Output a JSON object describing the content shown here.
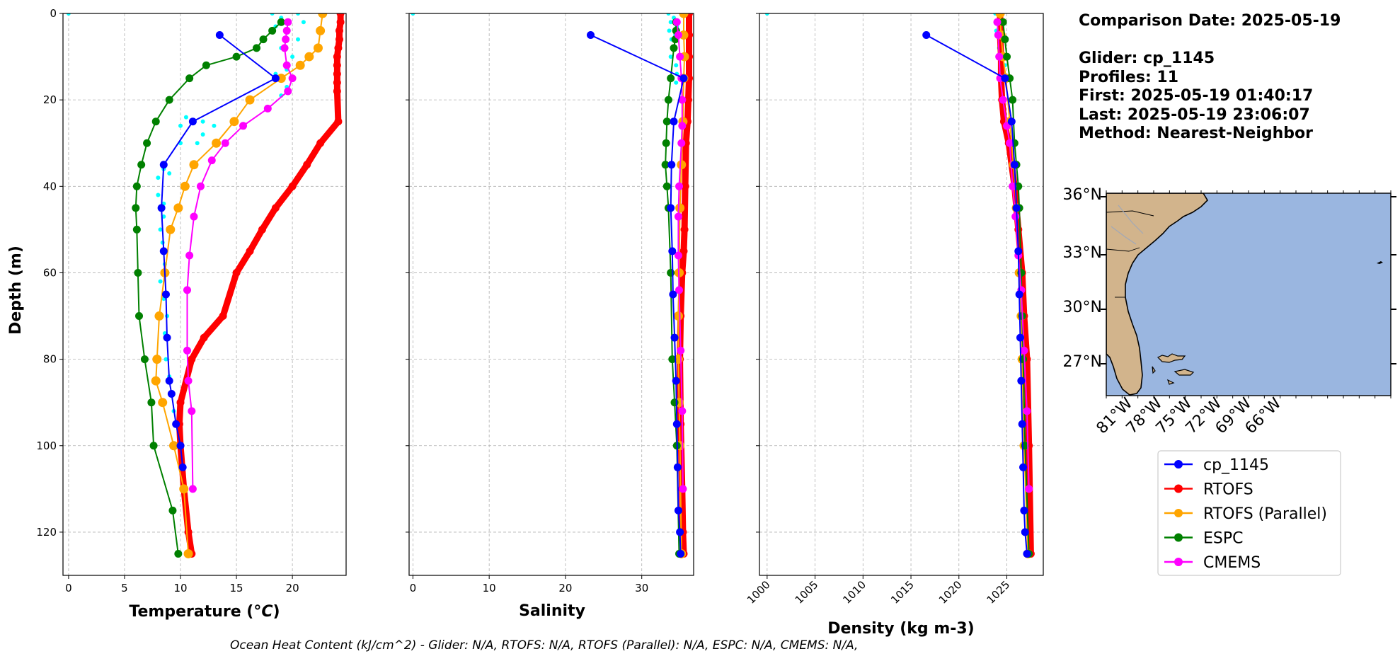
{
  "info": {
    "comparison_date": "Comparison Date: 2025-05-19",
    "glider": "Glider: cp_1145",
    "profiles": "Profiles: 11",
    "first": "First: 2025-05-19 01:40:17",
    "last": "Last: 2025-05-19 23:06:07",
    "method": "Method: Nearest-Neighbor"
  },
  "footer": "Ocean Heat Content (kJ/cm^2) - Glider: N/A,  RTOFS: N/A,  RTOFS (Parallel): N/A,  ESPC: N/A,  CMEMS: N/A,",
  "colors": {
    "cp_1145": "#0000ff",
    "rtofs": "#ff0000",
    "rtofs_parallel": "#ffa500",
    "espc": "#008000",
    "cmems": "#ff00ff",
    "raw": "#00ffff",
    "land": "#d2b48c",
    "ocean": "#9ab6e0"
  },
  "legend": [
    "cp_1145",
    "RTOFS",
    "RTOFS (Parallel)",
    "ESPC",
    "CMEMS"
  ],
  "map": {
    "lat_labels": [
      "36°N",
      "33°N",
      "30°N",
      "27°N"
    ],
    "lon_labels": [
      "81°W",
      "78°W",
      "75°W",
      "72°W",
      "69°W",
      "66°W"
    ],
    "extent": {
      "lon": [
        -83,
        -65
      ],
      "lat": [
        25.5,
        36
      ]
    }
  },
  "chart_data": [
    {
      "type": "line",
      "xlabel": "Temperature (°C)",
      "ylabel": "Depth (m)",
      "xlim": [
        -0.5,
        24.8
      ],
      "ylim": [
        130,
        0
      ],
      "xticks": [
        0,
        5,
        10,
        15,
        20
      ],
      "yticks": [
        0,
        20,
        40,
        60,
        80,
        100,
        120
      ],
      "grid": true,
      "raw_points": [
        [
          0,
          0
        ],
        [
          18.2,
          0
        ],
        [
          19,
          1
        ],
        [
          20.5,
          0
        ],
        [
          21,
          2
        ],
        [
          18.5,
          3
        ],
        [
          19.5,
          4
        ],
        [
          20.5,
          6
        ],
        [
          19,
          8
        ],
        [
          20,
          10
        ],
        [
          19.5,
          13
        ],
        [
          18.5,
          14
        ],
        [
          19.5,
          17
        ],
        [
          19,
          19
        ],
        [
          10.5,
          24
        ],
        [
          11,
          25
        ],
        [
          10,
          26
        ],
        [
          12,
          25
        ],
        [
          13,
          26
        ],
        [
          12,
          28
        ],
        [
          11.5,
          30
        ],
        [
          10,
          30
        ],
        [
          8.5,
          36
        ],
        [
          8,
          38
        ],
        [
          9,
          37
        ],
        [
          8,
          42
        ],
        [
          8.5,
          44
        ],
        [
          8.5,
          47
        ],
        [
          8.2,
          50
        ],
        [
          8.4,
          53
        ],
        [
          8.6,
          58
        ],
        [
          8.2,
          62
        ],
        [
          8.5,
          66
        ],
        [
          8.8,
          70
        ],
        [
          8.6,
          74
        ],
        [
          8.7,
          80
        ],
        [
          9,
          84
        ],
        [
          9.2,
          88
        ],
        [
          9.4,
          92
        ],
        [
          9.6,
          95
        ],
        [
          10,
          100
        ]
      ],
      "series": [
        {
          "name": "cp_1145",
          "x": [
            13.5,
            18.5,
            11.1,
            8.5,
            8.3,
            8.5,
            8.7,
            8.8,
            9.0,
            9.2,
            9.6,
            10.0,
            10.2
          ],
          "y": [
            5,
            15,
            25,
            35,
            45,
            55,
            65,
            75,
            85,
            88,
            95,
            100,
            105
          ]
        },
        {
          "name": "RTOFS",
          "x": [
            24.3,
            24.3,
            24.2,
            24.2,
            24.1,
            24.0,
            24.0,
            24.0,
            24.0,
            24.0,
            24.1,
            22.5,
            21.3,
            20.0,
            18.5,
            17.3,
            16.2,
            15.0,
            13.8,
            12.1,
            11.0,
            10.0,
            9.9,
            10.0,
            10.3,
            10.7,
            11.0
          ],
          "y": [
            0,
            2,
            4,
            6,
            8,
            10,
            12,
            14,
            16,
            18,
            25,
            30,
            35,
            40,
            45,
            50,
            55,
            60,
            70,
            75,
            80,
            90,
            95,
            100,
            110,
            120,
            125
          ]
        },
        {
          "name": "RTOFS (Parallel)",
          "x": [
            22.7,
            22.5,
            22.3,
            21.5,
            20.7,
            19.0,
            16.2,
            14.8,
            13.2,
            11.2,
            10.4,
            9.8,
            9.1,
            8.6,
            8.1,
            7.9,
            7.8,
            8.4,
            9.4,
            10.3,
            10.7
          ],
          "y": [
            0,
            4,
            8,
            10,
            12,
            15,
            20,
            25,
            30,
            35,
            40,
            45,
            50,
            60,
            70,
            80,
            85,
            90,
            100,
            110,
            125
          ]
        },
        {
          "name": "ESPC",
          "x": [
            19.0,
            18.2,
            17.4,
            16.8,
            15.0,
            12.3,
            10.8,
            9.0,
            7.8,
            7.0,
            6.5,
            6.1,
            6.0,
            6.1,
            6.2,
            6.3,
            6.8,
            7.4,
            7.6,
            9.3,
            9.8
          ],
          "y": [
            2,
            4,
            6,
            8,
            10,
            12,
            15,
            20,
            25,
            30,
            35,
            40,
            45,
            50,
            60,
            70,
            80,
            90,
            100,
            115,
            125
          ]
        },
        {
          "name": "CMEMS",
          "x": [
            19.6,
            19.5,
            19.4,
            19.3,
            19.5,
            20.0,
            19.6,
            17.8,
            15.6,
            14.0,
            12.8,
            11.8,
            11.2,
            10.8,
            10.6,
            10.6,
            10.7,
            11.0,
            11.1
          ],
          "y": [
            2,
            4,
            6,
            8,
            12,
            15,
            18,
            22,
            26,
            30,
            34,
            40,
            47,
            56,
            64,
            78,
            85,
            92,
            110
          ]
        }
      ]
    },
    {
      "type": "line",
      "xlabel": "Salinity",
      "xlim": [
        -0.5,
        36.8
      ],
      "ylim": [
        130,
        0
      ],
      "xticks": [
        0,
        10,
        20,
        30
      ],
      "grid": true,
      "raw_points": [
        [
          0,
          0
        ],
        [
          33.5,
          0
        ],
        [
          34.2,
          1
        ],
        [
          33.8,
          2
        ],
        [
          34.6,
          3
        ],
        [
          33.6,
          4
        ],
        [
          34.4,
          5
        ],
        [
          33.9,
          6
        ],
        [
          34.3,
          8
        ],
        [
          33.8,
          10
        ],
        [
          34.5,
          12
        ],
        [
          34.6,
          14
        ],
        [
          34.5,
          16
        ]
      ],
      "series": [
        {
          "name": "cp_1145",
          "x": [
            23.3,
            35.5,
            34.2,
            33.9,
            33.8,
            34.0,
            34.1,
            34.3,
            34.5,
            34.6,
            34.7,
            34.8,
            35.0,
            35.1
          ],
          "y": [
            5,
            15,
            25,
            35,
            45,
            55,
            65,
            75,
            85,
            95,
            105,
            115,
            120,
            125
          ]
        },
        {
          "name": "RTOFS",
          "x": [
            36.2,
            36.2,
            36.2,
            36.2,
            36.1,
            36.0,
            35.8,
            35.7,
            35.6,
            35.5,
            35.3,
            35.1,
            35.0,
            35.1,
            35.3,
            35.4,
            35.5
          ],
          "y": [
            0,
            5,
            10,
            15,
            20,
            25,
            30,
            40,
            50,
            55,
            60,
            70,
            80,
            95,
            110,
            120,
            125
          ]
        },
        {
          "name": "RTOFS (Parallel)",
          "x": [
            35.5,
            35.5,
            35.6,
            35.5,
            35.4,
            35.2,
            35.0,
            34.9,
            34.8,
            34.8,
            34.9,
            35.0,
            35.2
          ],
          "y": [
            0,
            5,
            10,
            15,
            25,
            35,
            45,
            60,
            70,
            80,
            90,
            100,
            125
          ]
        },
        {
          "name": "ESPC",
          "x": [
            34.5,
            34.5,
            34.4,
            34.2,
            33.8,
            33.5,
            33.3,
            33.2,
            33.1,
            33.3,
            33.5,
            33.8,
            34.0,
            34.3,
            34.6,
            34.9
          ],
          "y": [
            2,
            4,
            6,
            8,
            15,
            20,
            25,
            30,
            35,
            40,
            45,
            60,
            80,
            90,
            100,
            125
          ]
        },
        {
          "name": "CMEMS",
          "x": [
            34.6,
            34.8,
            35.0,
            35.2,
            35.3,
            35.3,
            35.2,
            34.9,
            34.8,
            34.8,
            34.9,
            35.1,
            35.3,
            35.4
          ],
          "y": [
            2,
            5,
            10,
            15,
            20,
            26,
            30,
            40,
            47,
            56,
            64,
            78,
            92,
            110
          ]
        }
      ]
    },
    {
      "type": "line",
      "xlabel": "Density (kg m-3)",
      "xlim": [
        999.2,
        1028.8
      ],
      "ylim": [
        130,
        0
      ],
      "xticks": [
        1000,
        1005,
        1010,
        1015,
        1020,
        1025
      ],
      "grid": true,
      "raw_points": [
        [
          1000,
          0
        ],
        [
          1023.8,
          0
        ],
        [
          1024.2,
          2
        ],
        [
          1023.9,
          4
        ],
        [
          1024.5,
          6
        ],
        [
          1024.2,
          8
        ],
        [
          1024.5,
          10
        ],
        [
          1024.8,
          12
        ],
        [
          1024.6,
          14
        ]
      ],
      "series": [
        {
          "name": "cp_1145",
          "x": [
            1016.6,
            1024.8,
            1025.5,
            1025.8,
            1026.0,
            1026.2,
            1026.3,
            1026.4,
            1026.5,
            1026.6,
            1026.7,
            1026.8,
            1026.9,
            1027.1
          ],
          "y": [
            5,
            15,
            25,
            35,
            45,
            55,
            65,
            75,
            85,
            95,
            105,
            115,
            120,
            125
          ]
        },
        {
          "name": "RTOFS",
          "x": [
            1024.3,
            1024.3,
            1024.4,
            1024.4,
            1024.5,
            1024.7,
            1025.2,
            1025.8,
            1026.2,
            1026.6,
            1026.8,
            1027.1,
            1027.3,
            1027.5
          ],
          "y": [
            0,
            5,
            10,
            15,
            20,
            25,
            30,
            40,
            50,
            60,
            70,
            80,
            100,
            125
          ]
        },
        {
          "name": "RTOFS (Parallel)",
          "x": [
            1024.3,
            1024.4,
            1024.6,
            1024.9,
            1025.3,
            1025.7,
            1026.0,
            1026.3,
            1026.5,
            1026.6,
            1026.8,
            1027.2
          ],
          "y": [
            0,
            5,
            10,
            15,
            25,
            35,
            45,
            60,
            70,
            80,
            100,
            125
          ]
        },
        {
          "name": "ESPC",
          "x": [
            1024.6,
            1024.8,
            1025.0,
            1025.3,
            1025.6,
            1025.8,
            1026.0,
            1026.2,
            1026.3,
            1026.5,
            1026.6,
            1026.7,
            1026.9,
            1027.3
          ],
          "y": [
            2,
            6,
            10,
            15,
            20,
            30,
            35,
            40,
            45,
            60,
            70,
            80,
            100,
            125
          ]
        },
        {
          "name": "CMEMS",
          "x": [
            1024.0,
            1024.1,
            1024.2,
            1024.3,
            1024.6,
            1025.0,
            1025.3,
            1025.6,
            1025.9,
            1026.2,
            1026.5,
            1026.8,
            1027.1,
            1027.3
          ],
          "y": [
            2,
            5,
            10,
            15,
            20,
            26,
            30,
            40,
            47,
            56,
            64,
            78,
            92,
            110
          ]
        }
      ]
    }
  ]
}
